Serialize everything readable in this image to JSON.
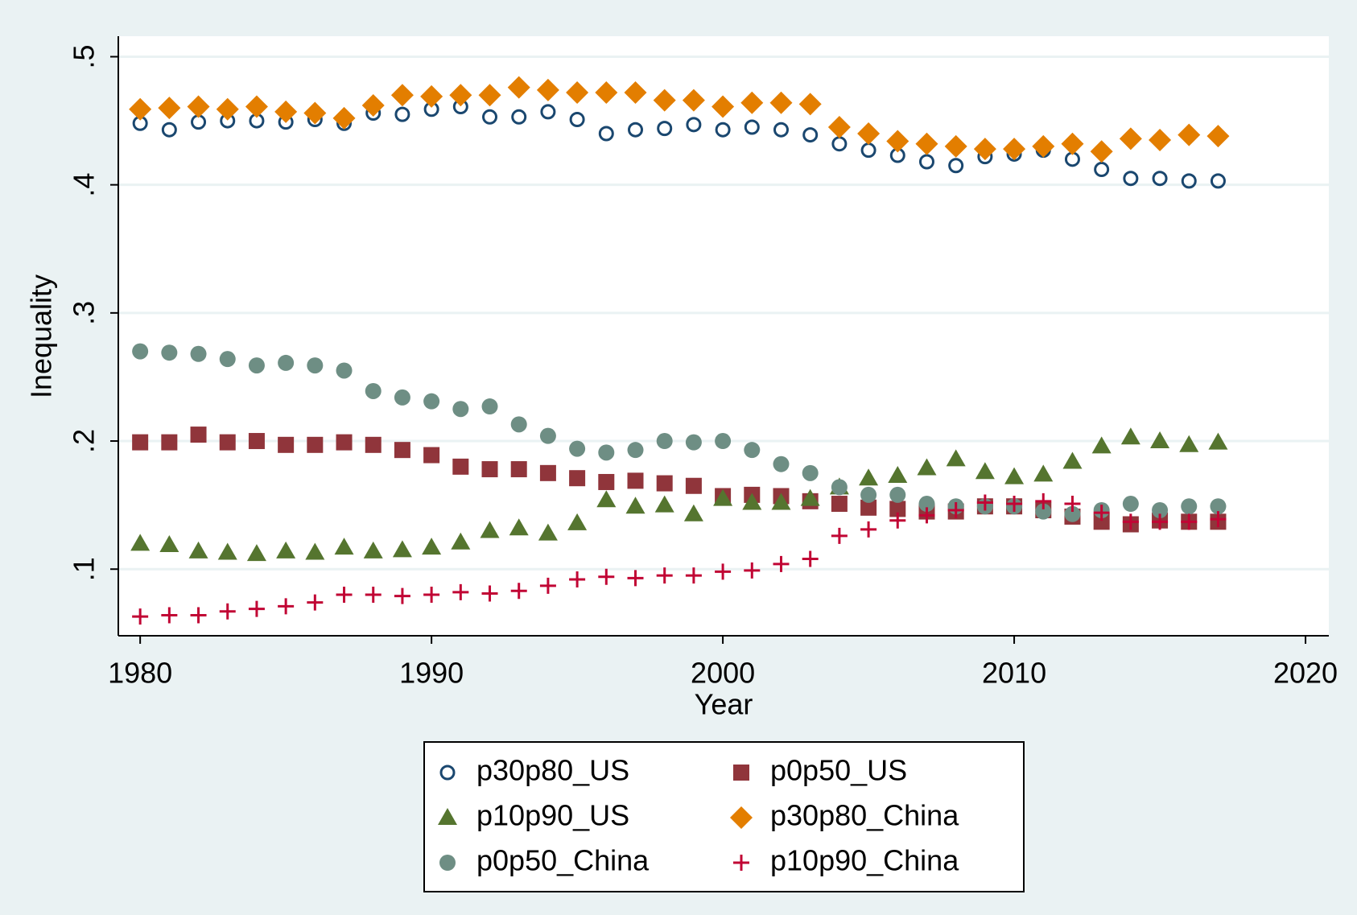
{
  "chart_data": {
    "type": "scatter",
    "x_label": "Year",
    "y_label": "Inequality",
    "x": [
      1980,
      1981,
      1982,
      1983,
      1984,
      1985,
      1986,
      1987,
      1988,
      1989,
      1990,
      1991,
      1992,
      1993,
      1994,
      1995,
      1996,
      1997,
      1998,
      1999,
      2000,
      2001,
      2002,
      2003,
      2004,
      2005,
      2006,
      2007,
      2008,
      2009,
      2010,
      2011,
      2012,
      2013,
      2014,
      2015,
      2016,
      2017
    ],
    "xlim": [
      1979.25,
      2020.8
    ],
    "xticks": [
      1980,
      1990,
      2000,
      2010,
      2020
    ],
    "ylim": [
      0.048,
      0.516
    ],
    "yticks": [
      {
        "value": 0.1,
        "label": ".1"
      },
      {
        "value": 0.2,
        "label": ".2"
      },
      {
        "value": 0.3,
        "label": ".3"
      },
      {
        "value": 0.4,
        "label": ".4"
      },
      {
        "value": 0.5,
        "label": ".5"
      }
    ],
    "grid": true,
    "legend": "bottom",
    "series": [
      {
        "name": "p30p80_US",
        "color": "#1a476f",
        "marker": "circle-open",
        "values": [
          0.448,
          0.443,
          0.449,
          0.45,
          0.45,
          0.449,
          0.451,
          0.448,
          0.456,
          0.455,
          0.459,
          0.461,
          0.453,
          0.453,
          0.457,
          0.451,
          0.44,
          0.443,
          0.444,
          0.447,
          0.443,
          0.445,
          0.443,
          0.439,
          0.432,
          0.427,
          0.423,
          0.418,
          0.415,
          0.422,
          0.424,
          0.427,
          0.42,
          0.412,
          0.405,
          0.405,
          0.403,
          0.403
        ]
      },
      {
        "name": "p0p50_US",
        "color": "#90353b",
        "marker": "square",
        "values": [
          0.199,
          0.199,
          0.205,
          0.199,
          0.2,
          0.197,
          0.197,
          0.199,
          0.197,
          0.193,
          0.189,
          0.18,
          0.178,
          0.178,
          0.175,
          0.171,
          0.168,
          0.169,
          0.167,
          0.165,
          0.157,
          0.158,
          0.157,
          0.153,
          0.151,
          0.148,
          0.147,
          0.145,
          0.145,
          0.149,
          0.149,
          0.146,
          0.141,
          0.137,
          0.135,
          0.138,
          0.137,
          0.137
        ]
      },
      {
        "name": "p10p90_US",
        "color": "#55752f",
        "marker": "triangle",
        "values": [
          0.12,
          0.119,
          0.114,
          0.113,
          0.112,
          0.114,
          0.113,
          0.117,
          0.114,
          0.115,
          0.117,
          0.121,
          0.13,
          0.132,
          0.128,
          0.136,
          0.154,
          0.149,
          0.15,
          0.143,
          0.155,
          0.152,
          0.152,
          0.155,
          0.164,
          0.171,
          0.173,
          0.179,
          0.186,
          0.176,
          0.172,
          0.174,
          0.184,
          0.196,
          0.203,
          0.2,
          0.197,
          0.199
        ]
      },
      {
        "name": "p30p80_China",
        "color": "#e37e00",
        "marker": "diamond",
        "values": [
          0.459,
          0.46,
          0.461,
          0.459,
          0.461,
          0.457,
          0.456,
          0.452,
          0.462,
          0.47,
          0.469,
          0.47,
          0.47,
          0.476,
          0.474,
          0.472,
          0.472,
          0.472,
          0.466,
          0.466,
          0.461,
          0.464,
          0.464,
          0.463,
          0.445,
          0.44,
          0.434,
          0.432,
          0.43,
          0.428,
          0.428,
          0.43,
          0.432,
          0.426,
          0.436,
          0.435,
          0.439,
          0.438
        ]
      },
      {
        "name": "p0p50_China",
        "color": "#6e8e84",
        "marker": "circle",
        "values": [
          0.27,
          0.269,
          0.268,
          0.264,
          0.259,
          0.261,
          0.259,
          0.255,
          0.239,
          0.234,
          0.231,
          0.225,
          0.227,
          0.213,
          0.204,
          0.194,
          0.191,
          0.193,
          0.2,
          0.199,
          0.2,
          0.193,
          0.182,
          0.175,
          0.164,
          0.158,
          0.158,
          0.151,
          0.149,
          0.149,
          0.149,
          0.145,
          0.143,
          0.146,
          0.151,
          0.146,
          0.149,
          0.149
        ]
      },
      {
        "name": "p10p90_China",
        "color": "#c10534",
        "marker": "plus",
        "values": [
          0.063,
          0.064,
          0.064,
          0.067,
          0.069,
          0.071,
          0.074,
          0.08,
          0.08,
          0.079,
          0.08,
          0.082,
          0.081,
          0.083,
          0.087,
          0.092,
          0.094,
          0.093,
          0.095,
          0.095,
          0.098,
          0.099,
          0.104,
          0.108,
          0.126,
          0.131,
          0.138,
          0.142,
          0.146,
          0.152,
          0.151,
          0.153,
          0.151,
          0.144,
          0.137,
          0.137,
          0.137,
          0.139
        ]
      }
    ]
  }
}
